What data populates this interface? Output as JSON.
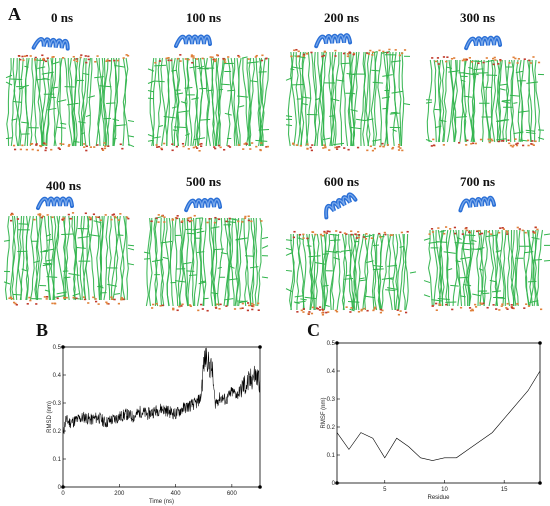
{
  "figure": {
    "panel_a": "A",
    "panel_b": "B",
    "panel_c": "C",
    "time_labels": [
      "0 ns",
      "100 ns",
      "200 ns",
      "300 ns",
      "400 ns",
      "500 ns",
      "600 ns",
      "700 ns"
    ]
  },
  "colors": {
    "lipid_green": "#2fb34a",
    "lipid_orange": "#e0803a",
    "helix_blue": "#2a6fd6",
    "line": "#000000"
  },
  "chart_data": [
    {
      "type": "line",
      "title": "",
      "xlabel": "Time (ns)",
      "ylabel": "RMSD (nm)",
      "xlim": [
        0,
        700
      ],
      "ylim": [
        0,
        0.5
      ],
      "xticks": [
        0,
        200,
        400,
        600
      ],
      "yticks": [
        0,
        0.1,
        0.2,
        0.3,
        0.4,
        0.5
      ],
      "xtick_labels": [
        "0",
        "200",
        "400",
        "600"
      ],
      "ytick_labels": [
        "0",
        "0.1",
        "0.2",
        "0.3",
        "0.4",
        "0.5"
      ],
      "grid": false,
      "series": [
        {
          "x": [
            0,
            10,
            25,
            50,
            75,
            100,
            125,
            150,
            175,
            200,
            225,
            250,
            275,
            300,
            325,
            350,
            375,
            400,
            425,
            450,
            475,
            490,
            500,
            510,
            520,
            530,
            540,
            560,
            580,
            600,
            620,
            640,
            660,
            680,
            700
          ],
          "values": [
            0.19,
            0.24,
            0.23,
            0.24,
            0.25,
            0.24,
            0.25,
            0.23,
            0.24,
            0.25,
            0.26,
            0.25,
            0.27,
            0.26,
            0.27,
            0.28,
            0.27,
            0.26,
            0.28,
            0.29,
            0.3,
            0.32,
            0.44,
            0.47,
            0.43,
            0.42,
            0.3,
            0.32,
            0.31,
            0.34,
            0.33,
            0.36,
            0.37,
            0.4,
            0.38
          ]
        }
      ]
    },
    {
      "type": "line",
      "title": "",
      "xlabel": "Residue",
      "ylabel": "RMSF (nm)",
      "xlim": [
        1,
        18
      ],
      "ylim": [
        0,
        0.5
      ],
      "xticks": [
        5,
        10,
        15
      ],
      "yticks": [
        0,
        0.1,
        0.2,
        0.3,
        0.4,
        0.5
      ],
      "xtick_labels": [
        "5",
        "10",
        "15"
      ],
      "ytick_labels": [
        "0",
        "0.1",
        "0.2",
        "0.3",
        "0.4",
        "0.5"
      ],
      "grid": false,
      "series": [
        {
          "x": [
            1,
            2,
            3,
            4,
            5,
            6,
            7,
            8,
            9,
            10,
            11,
            12,
            13,
            14,
            15,
            16,
            17,
            18
          ],
          "values": [
            0.18,
            0.12,
            0.18,
            0.16,
            0.09,
            0.16,
            0.13,
            0.09,
            0.08,
            0.09,
            0.09,
            0.12,
            0.15,
            0.18,
            0.23,
            0.28,
            0.33,
            0.4
          ]
        }
      ]
    }
  ]
}
